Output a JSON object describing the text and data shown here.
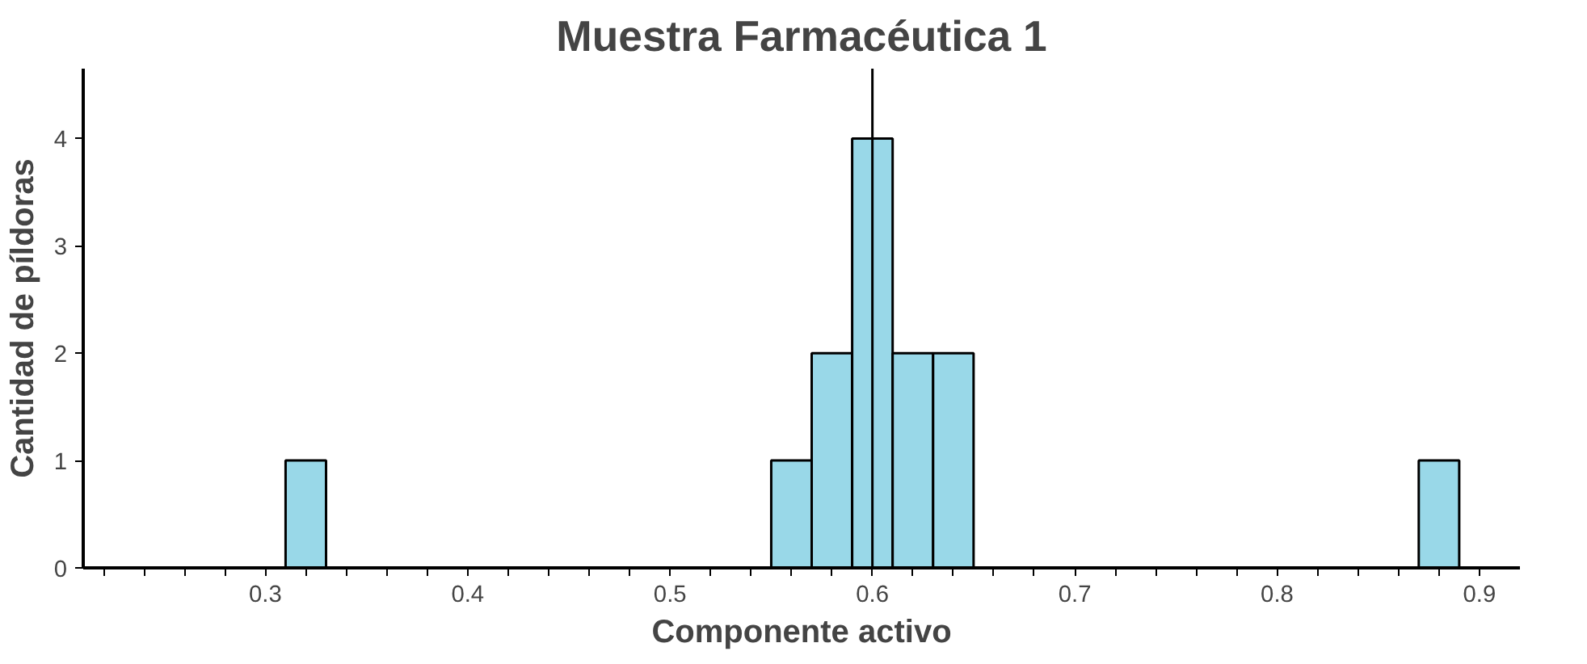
{
  "chart_data": {
    "type": "histogram",
    "title": "Muestra Farmacéutica 1",
    "xlabel": "Componente activo",
    "ylabel": "Cantidad de píldoras",
    "bins": [
      0.31,
      0.33,
      0.35,
      0.37,
      0.39,
      0.41,
      0.43,
      0.45,
      0.47,
      0.49,
      0.51,
      0.53,
      0.55,
      0.57,
      0.59,
      0.61,
      0.63,
      0.65,
      0.67,
      0.69,
      0.71,
      0.73,
      0.75,
      0.77,
      0.79,
      0.81,
      0.83,
      0.85,
      0.87,
      0.89
    ],
    "values": [
      1,
      0,
      0,
      0,
      0,
      0,
      0,
      0,
      0,
      0,
      0,
      0,
      1,
      2,
      4,
      2,
      2,
      0,
      0,
      0,
      0,
      0,
      0,
      0,
      0,
      0,
      0,
      0,
      1
    ],
    "color": "#99d8e8",
    "xlim": [
      0.21,
      0.92
    ],
    "ylim": [
      0,
      4.65
    ],
    "xticks": [
      {
        "value": 0.22,
        "label": null
      },
      {
        "value": 0.24,
        "label": null
      },
      {
        "value": 0.26,
        "label": null
      },
      {
        "value": 0.28,
        "label": null
      },
      0.3,
      {
        "value": 0.32,
        "label": null
      },
      {
        "value": 0.34,
        "label": null
      },
      {
        "value": 0.36,
        "label": null
      },
      {
        "value": 0.38,
        "label": null
      },
      0.4,
      {
        "value": 0.42,
        "label": null
      },
      {
        "value": 0.44,
        "label": null
      },
      {
        "value": 0.46,
        "label": null
      },
      {
        "value": 0.48,
        "label": null
      },
      0.5,
      {
        "value": 0.52,
        "label": null
      },
      {
        "value": 0.54,
        "label": null
      },
      {
        "value": 0.56,
        "label": null
      },
      {
        "value": 0.58,
        "label": null
      },
      0.6,
      {
        "value": 0.62,
        "label": null
      },
      {
        "value": 0.64,
        "label": null
      },
      {
        "value": 0.66,
        "label": null
      },
      {
        "value": 0.68,
        "label": null
      },
      0.7,
      {
        "value": 0.72,
        "label": null
      },
      {
        "value": 0.74,
        "label": null
      },
      {
        "value": 0.76,
        "label": null
      },
      {
        "value": 0.78,
        "label": null
      },
      0.8,
      {
        "value": 0.82,
        "label": null
      },
      {
        "value": 0.84,
        "label": null
      },
      {
        "value": 0.86,
        "label": null
      },
      {
        "value": 0.88,
        "label": null
      },
      0.9
    ],
    "yticks": [
      0,
      1,
      2,
      3,
      4
    ],
    "ref_lines": [
      {
        "axis": "x",
        "value": 0.6,
        "color": "#000000"
      }
    ],
    "grid": false
  }
}
